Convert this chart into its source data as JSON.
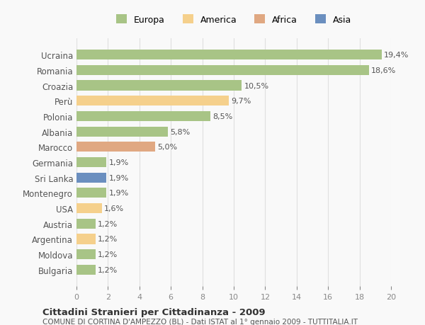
{
  "countries": [
    "Ucraina",
    "Romania",
    "Croazia",
    "Perù",
    "Polonia",
    "Albania",
    "Marocco",
    "Germania",
    "Sri Lanka",
    "Montenegro",
    "USA",
    "Austria",
    "Argentina",
    "Moldova",
    "Bulgaria"
  ],
  "values": [
    19.4,
    18.6,
    10.5,
    9.7,
    8.5,
    5.8,
    5.0,
    1.9,
    1.9,
    1.9,
    1.6,
    1.2,
    1.2,
    1.2,
    1.2
  ],
  "labels": [
    "19,4%",
    "18,6%",
    "10,5%",
    "9,7%",
    "8,5%",
    "5,8%",
    "5,0%",
    "1,9%",
    "1,9%",
    "1,9%",
    "1,6%",
    "1,2%",
    "1,2%",
    "1,2%",
    "1,2%"
  ],
  "colors": [
    "#a8c486",
    "#a8c486",
    "#a8c486",
    "#f5d08c",
    "#a8c486",
    "#a8c486",
    "#e0a882",
    "#a8c486",
    "#6b8fbf",
    "#a8c486",
    "#f5d08c",
    "#a8c486",
    "#f5d08c",
    "#a8c486",
    "#a8c486"
  ],
  "legend_labels": [
    "Europa",
    "America",
    "Africa",
    "Asia"
  ],
  "legend_colors": [
    "#a8c486",
    "#f5d08c",
    "#e0a882",
    "#6b8fbf"
  ],
  "title": "Cittadini Stranieri per Cittadinanza - 2009",
  "subtitle": "COMUNE DI CORTINA D'AMPEZZO (BL) - Dati ISTAT al 1° gennaio 2009 - TUTTITALIA.IT",
  "xlim": [
    0,
    20
  ],
  "xticks": [
    0,
    2,
    4,
    6,
    8,
    10,
    12,
    14,
    16,
    18,
    20
  ],
  "background_color": "#f9f9f9",
  "grid_color": "#e0e0e0"
}
